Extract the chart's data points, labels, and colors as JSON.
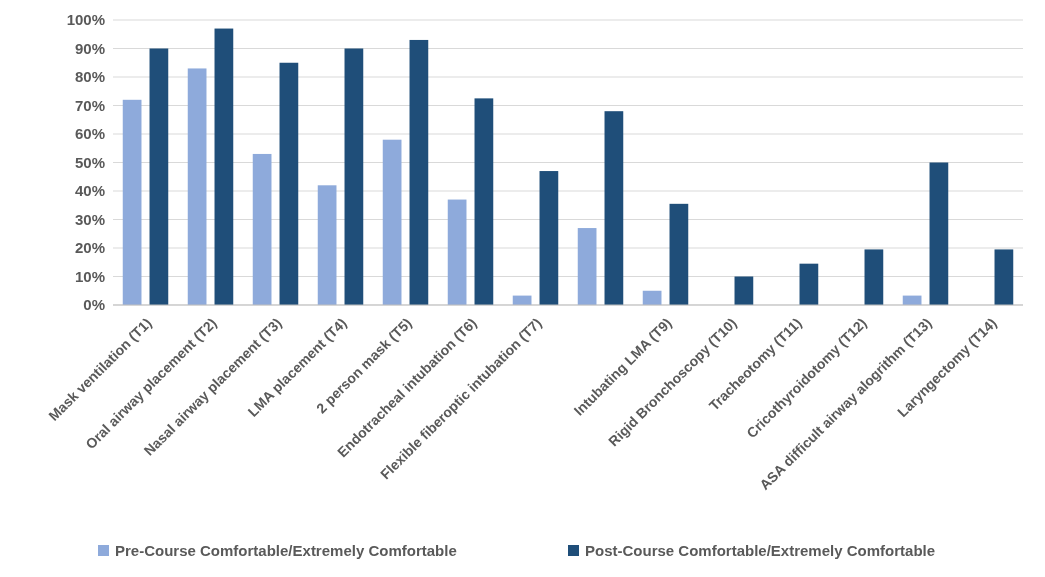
{
  "chart_data": {
    "type": "bar",
    "categories": [
      "Mask ventilation (T1)",
      "Oral airway placement (T2)",
      "Nasal airway placement (T3)",
      "LMA placement (T4)",
      "2 person mask (T5)",
      "Endotracheal intubation (T6)",
      "Flexible fiberoptic intubation (T7)",
      null,
      "Intubating LMA (T9)",
      "Rigid Bronchoscopy (T10)",
      "Tracheotomy (T11)",
      "Cricothyroidotomy (T12)",
      "ASA difficult airway alogrithm (T13)",
      "Laryngectomy (T14)"
    ],
    "series": [
      {
        "name": "Pre-Course Comfortable/Extremely Comfortable",
        "color": "#8eaadb",
        "values": [
          72,
          83,
          53,
          42,
          58,
          37,
          3.3,
          27,
          5,
          0,
          0,
          0,
          3.3,
          0
        ]
      },
      {
        "name": "Post-Course Comfortable/Extremely Comfortable",
        "color": "#1f4e79",
        "values": [
          90,
          97,
          85,
          90,
          93,
          72.5,
          47,
          68,
          35.5,
          10,
          14.5,
          19.5,
          50,
          19.5
        ]
      }
    ],
    "ylim": [
      0,
      100
    ],
    "yticks": [
      {
        "value": 0,
        "label": "0%"
      },
      {
        "value": 10,
        "label": "10%"
      },
      {
        "value": 20,
        "label": "20%"
      },
      {
        "value": 30,
        "label": "30%"
      },
      {
        "value": 40,
        "label": "40%"
      },
      {
        "value": 50,
        "label": "50%"
      },
      {
        "value": 60,
        "label": "60%"
      },
      {
        "value": 70,
        "label": "70%"
      },
      {
        "value": 80,
        "label": "80%"
      },
      {
        "value": 90,
        "label": "90%"
      },
      {
        "value": 100,
        "label": "100%"
      }
    ],
    "grid": "y",
    "legend": "bottom"
  }
}
